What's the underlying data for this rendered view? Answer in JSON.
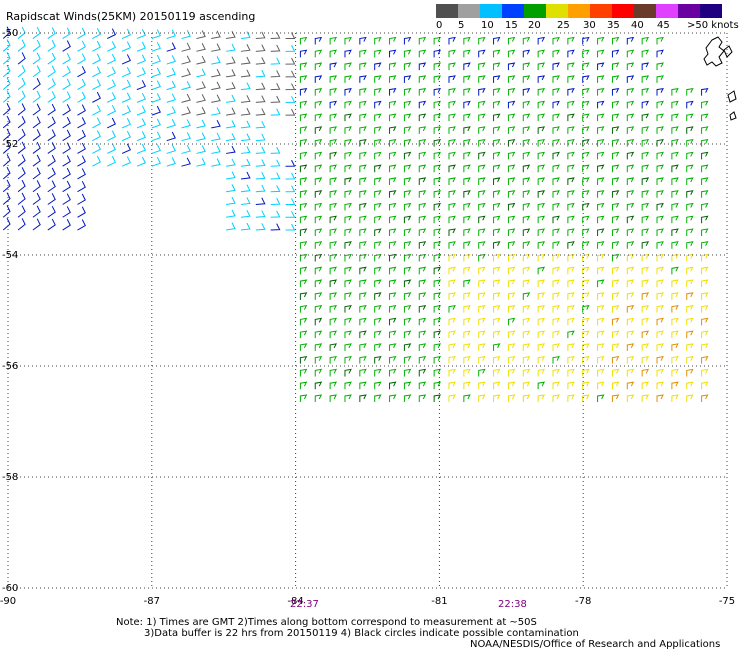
{
  "title": "Rapidscat Winds(25KM) 20150119 ascending",
  "legend": {
    "units": ">50 knots",
    "ticks": [
      "0",
      "5",
      "10",
      "15",
      "20",
      "25",
      "30",
      "35",
      "40",
      "45"
    ],
    "colors": [
      "#505050",
      "#a0a0a0",
      "#00c0ff",
      "#0040ff",
      "#00a000",
      "#e0e000",
      "#ffa000",
      "#ff4000",
      "#ff0000",
      "#6a3a2a",
      "#e040ff",
      "#6a00a0",
      "#200080"
    ]
  },
  "map": {
    "lon_range": [
      -90,
      -75
    ],
    "lat_range": [
      -60,
      -50
    ],
    "lon_ticks": [
      "-90",
      "-87",
      "-84",
      "-81",
      "-78",
      "-75"
    ],
    "lat_ticks": [
      "-50",
      "-52",
      "-54",
      "-56",
      "-58",
      "-60"
    ],
    "grid": "dotted",
    "wind_colors": {
      "cyan": "#00d0ff",
      "blue": "#0018c0",
      "green": "#00b000",
      "dark_green": "#006400",
      "yellow": "#f0e000",
      "orange": "#e09000",
      "gray": "#606060"
    }
  },
  "times": [
    "22:37",
    "22:38"
  ],
  "notes": [
    "Note: 1) Times are GMT 2)Times along bottom correspond to measurement at ~50S",
    "3)Data buffer is 22 hrs from 20150119 4) Black circles indicate possible contamination"
  ],
  "credit": "NOAA/NESDIS/Office of Research and Applications"
}
